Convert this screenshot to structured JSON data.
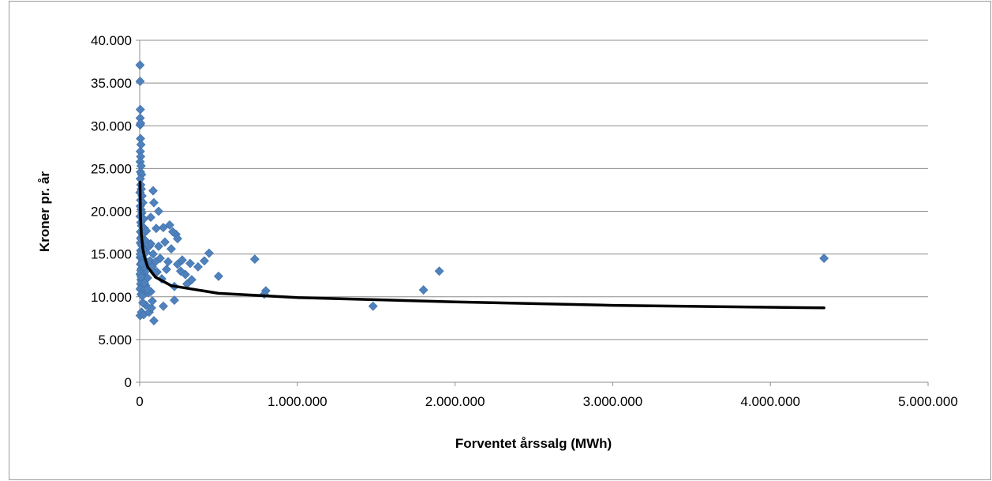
{
  "chart_data": {
    "type": "scatter",
    "title": "",
    "xlabel": "Forventet årssalg (MWh)",
    "ylabel": "Kroner pr. år",
    "xlim": [
      0,
      5000000
    ],
    "ylim": [
      0,
      40000
    ],
    "x_ticks": [
      0,
      1000000,
      2000000,
      3000000,
      4000000,
      5000000
    ],
    "x_tick_labels": [
      "0",
      "1.000.000",
      "2.000.000",
      "3.000.000",
      "4.000.000",
      "5.000.000"
    ],
    "y_ticks": [
      0,
      5000,
      10000,
      15000,
      20000,
      25000,
      30000,
      35000,
      40000
    ],
    "y_tick_labels": [
      "0",
      "5.000",
      "10.000",
      "15.000",
      "20.000",
      "25.000",
      "30.000",
      "35.000",
      "40.000"
    ],
    "grid": "horizontal",
    "legend": "none",
    "marker_color": "#4f81bd",
    "trend_color": "#000000",
    "points": [
      [
        2000,
        37100
      ],
      [
        3000,
        35200
      ],
      [
        4000,
        31900
      ],
      [
        3000,
        30900
      ],
      [
        3000,
        30100
      ],
      [
        6000,
        30300
      ],
      [
        5000,
        28500
      ],
      [
        8000,
        27800
      ],
      [
        4000,
        27000
      ],
      [
        6000,
        26400
      ],
      [
        3000,
        25800
      ],
      [
        9000,
        25300
      ],
      [
        5000,
        24600
      ],
      [
        12000,
        24300
      ],
      [
        4000,
        23800
      ],
      [
        7000,
        23100
      ],
      [
        10000,
        22600
      ],
      [
        2000,
        22200
      ],
      [
        15000,
        21800
      ],
      [
        6000,
        21300
      ],
      [
        20000,
        21000
      ],
      [
        4000,
        20600
      ],
      [
        9000,
        20200
      ],
      [
        14000,
        19800
      ],
      [
        3000,
        19400
      ],
      [
        25000,
        19100
      ],
      [
        7000,
        18700
      ],
      [
        11000,
        18300
      ],
      [
        30000,
        18000
      ],
      [
        5000,
        17600
      ],
      [
        18000,
        17300
      ],
      [
        8000,
        16900
      ],
      [
        35000,
        16600
      ],
      [
        4000,
        16300
      ],
      [
        13000,
        16000
      ],
      [
        22000,
        15700
      ],
      [
        6000,
        15400
      ],
      [
        40000,
        15200
      ],
      [
        9000,
        14900
      ],
      [
        3000,
        14600
      ],
      [
        27000,
        14400
      ],
      [
        16000,
        14100
      ],
      [
        5000,
        13800
      ],
      [
        45000,
        13600
      ],
      [
        11000,
        13300
      ],
      [
        7000,
        13100
      ],
      [
        33000,
        12900
      ],
      [
        4000,
        12600
      ],
      [
        20000,
        12400
      ],
      [
        50000,
        12200
      ],
      [
        8000,
        12000
      ],
      [
        14000,
        11800
      ],
      [
        6000,
        11500
      ],
      [
        38000,
        11300
      ],
      [
        10000,
        11100
      ],
      [
        3000,
        10900
      ],
      [
        24000,
        10700
      ],
      [
        55000,
        10500
      ],
      [
        9000,
        10300
      ],
      [
        17000,
        10100
      ],
      [
        5000,
        12700
      ],
      [
        28000,
        13500
      ],
      [
        12000,
        14700
      ],
      [
        60000,
        15900
      ],
      [
        7000,
        16800
      ],
      [
        42000,
        17700
      ],
      [
        15000,
        13900
      ],
      [
        4000,
        15000
      ],
      [
        21000,
        15500
      ],
      [
        65000,
        14200
      ],
      [
        10000,
        12300
      ],
      [
        31000,
        11600
      ],
      [
        3000,
        7800
      ],
      [
        12000,
        8200
      ],
      [
        25000,
        7900
      ],
      [
        40000,
        9000
      ],
      [
        60000,
        8200
      ],
      [
        75000,
        8700
      ],
      [
        90000,
        7200
      ],
      [
        110000,
        12900
      ],
      [
        150000,
        8900
      ],
      [
        220000,
        9600
      ],
      [
        220000,
        11200
      ],
      [
        70000,
        10600
      ],
      [
        80000,
        9500
      ],
      [
        20000,
        9300
      ],
      [
        50000,
        10900
      ],
      [
        85000,
        22400
      ],
      [
        90000,
        21000
      ],
      [
        120000,
        20000
      ],
      [
        70000,
        19300
      ],
      [
        105000,
        18000
      ],
      [
        150000,
        18100
      ],
      [
        190000,
        18400
      ],
      [
        230000,
        17300
      ],
      [
        210000,
        17600
      ],
      [
        240000,
        16800
      ],
      [
        160000,
        16400
      ],
      [
        120000,
        15900
      ],
      [
        200000,
        15600
      ],
      [
        85000,
        15000
      ],
      [
        130000,
        14500
      ],
      [
        100000,
        14100
      ],
      [
        180000,
        14100
      ],
      [
        240000,
        13800
      ],
      [
        270000,
        14300
      ],
      [
        260000,
        13000
      ],
      [
        290000,
        12600
      ],
      [
        320000,
        13900
      ],
      [
        300000,
        11500
      ],
      [
        330000,
        12000
      ],
      [
        370000,
        13500
      ],
      [
        410000,
        14200
      ],
      [
        440000,
        15100
      ],
      [
        500000,
        12400
      ],
      [
        80000,
        13500
      ],
      [
        95000,
        12800
      ],
      [
        140000,
        12100
      ],
      [
        170000,
        13200
      ],
      [
        70000,
        16200
      ],
      [
        730000,
        14400
      ],
      [
        800000,
        10700
      ],
      [
        790000,
        10300
      ],
      [
        1480000,
        8900
      ],
      [
        1800000,
        10800
      ],
      [
        1900000,
        13000
      ],
      [
        4340000,
        14500
      ]
    ],
    "trend": {
      "type": "logarithmic",
      "x_start": 2000,
      "x_end": 4340000,
      "points": [
        [
          2000,
          23400
        ],
        [
          5000,
          19500
        ],
        [
          10000,
          17400
        ],
        [
          20000,
          15600
        ],
        [
          30000,
          14700
        ],
        [
          50000,
          13500
        ],
        [
          100000,
          12300
        ],
        [
          200000,
          11300
        ],
        [
          500000,
          10400
        ],
        [
          1000000,
          9900
        ],
        [
          2000000,
          9400
        ],
        [
          3000000,
          9000
        ],
        [
          4340000,
          8700
        ]
      ]
    }
  }
}
